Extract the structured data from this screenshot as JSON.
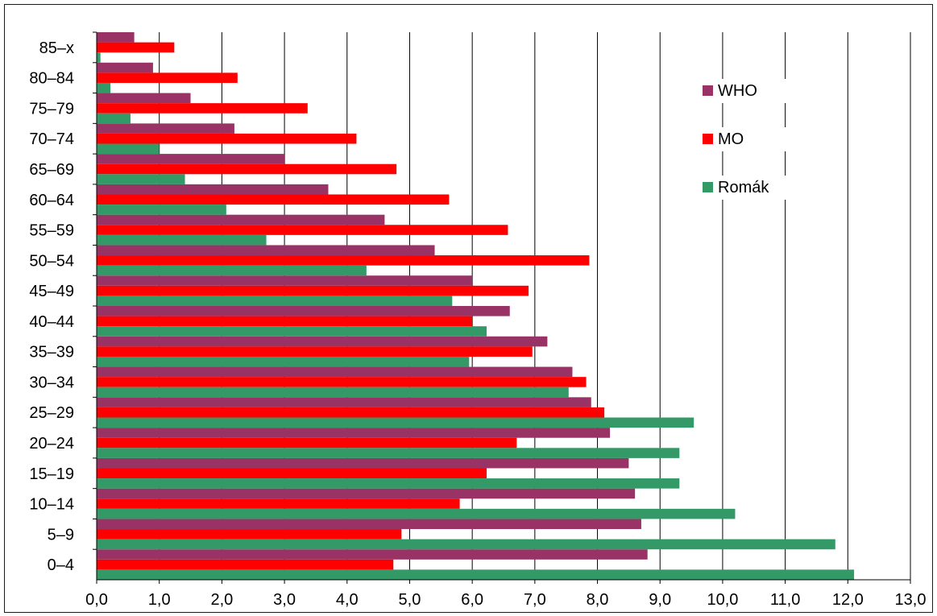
{
  "chart_data": {
    "type": "bar",
    "orientation": "horizontal",
    "categories": [
      "0–4",
      "5–9",
      "10–14",
      "15–19",
      "20–24",
      "25–29",
      "30–34",
      "35–39",
      "40–44",
      "45–49",
      "50–54",
      "55–59",
      "60–64",
      "65–69",
      "70–74",
      "75–79",
      "80–84",
      "85–x"
    ],
    "series": [
      {
        "name": "WHO",
        "color": "#993366",
        "values": [
          8.8,
          8.7,
          8.6,
          8.5,
          8.2,
          7.9,
          7.6,
          7.2,
          6.6,
          6.0,
          5.4,
          4.6,
          3.7,
          3.0,
          2.2,
          1.5,
          0.9,
          0.6
        ]
      },
      {
        "name": "MO",
        "color": "#ff0000",
        "values": [
          4.74,
          4.87,
          5.8,
          6.23,
          6.71,
          8.11,
          7.82,
          6.96,
          6.0,
          6.9,
          7.87,
          6.57,
          5.63,
          4.79,
          4.15,
          3.37,
          2.25,
          1.24
        ]
      },
      {
        "name": "Romák",
        "color": "#339966",
        "values": [
          12.1,
          11.8,
          10.2,
          9.31,
          9.31,
          9.54,
          7.54,
          5.95,
          6.23,
          5.68,
          4.31,
          2.71,
          2.07,
          1.41,
          1.0,
          0.54,
          0.22,
          0.06
        ]
      }
    ],
    "xticks": [
      "0,0",
      "1,0",
      "2,0",
      "3,0",
      "4,0",
      "5,0",
      "6,0",
      "7,0",
      "8,0",
      "9,0",
      "10,0",
      "11,0",
      "12,0",
      "13,0"
    ],
    "xlim": [
      0,
      13
    ],
    "title": "",
    "xlabel": "",
    "ylabel": "",
    "grid": "vertical",
    "legend": "top-right"
  }
}
